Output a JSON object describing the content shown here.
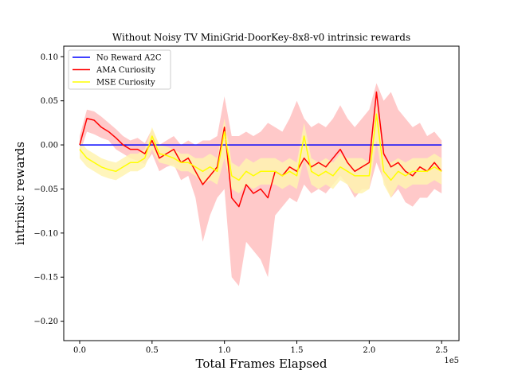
{
  "chart_data": {
    "type": "line",
    "title": "Without Noisy TV MiniGrid-DoorKey-8x8-v0 intrinsic rewards",
    "xlabel": "Total Frames Elapsed",
    "ylabel": "intrinsic rewards",
    "x_multiplier_label": "1e5",
    "xlim": [
      -11000,
      262000
    ],
    "ylim": [
      -0.222,
      0.112
    ],
    "x_ticks": [
      {
        "value": 0,
        "label": "0.0"
      },
      {
        "value": 50000,
        "label": "0.5"
      },
      {
        "value": 100000,
        "label": "1.0"
      },
      {
        "value": 150000,
        "label": "1.5"
      },
      {
        "value": 200000,
        "label": "2.0"
      },
      {
        "value": 250000,
        "label": "2.5"
      }
    ],
    "y_ticks": [
      {
        "value": 0.1,
        "label": "0.10"
      },
      {
        "value": 0.05,
        "label": "0.05"
      },
      {
        "value": 0.0,
        "label": "0.00"
      },
      {
        "value": -0.05,
        "label": "−0.05"
      },
      {
        "value": -0.1,
        "label": "−0.10"
      },
      {
        "value": -0.15,
        "label": "−0.15"
      },
      {
        "value": -0.2,
        "label": "−0.20"
      }
    ],
    "grid": false,
    "legend_position": "top-left",
    "series": [
      {
        "name": "No Reward A2C",
        "color": "#0000ff",
        "x": [
          0,
          250000
        ],
        "y": [
          0.0,
          0.0
        ]
      },
      {
        "name": "AMA Curiosity",
        "color": "#ff0000",
        "band_color": "#ffbfbf",
        "x": [
          0,
          5000,
          10000,
          15000,
          20000,
          25000,
          30000,
          35000,
          40000,
          45000,
          50000,
          55000,
          60000,
          65000,
          70000,
          75000,
          80000,
          85000,
          90000,
          95000,
          100000,
          105000,
          110000,
          115000,
          120000,
          125000,
          130000,
          135000,
          140000,
          145000,
          150000,
          155000,
          160000,
          165000,
          170000,
          175000,
          180000,
          185000,
          190000,
          195000,
          200000,
          205000,
          210000,
          215000,
          220000,
          225000,
          230000,
          235000,
          240000,
          245000,
          250000
        ],
        "y": [
          0.0,
          0.03,
          0.028,
          0.02,
          0.015,
          0.008,
          0.0,
          -0.005,
          -0.005,
          -0.01,
          0.005,
          -0.015,
          -0.01,
          -0.005,
          -0.02,
          -0.015,
          -0.03,
          -0.045,
          -0.035,
          -0.025,
          0.02,
          -0.06,
          -0.07,
          -0.045,
          -0.055,
          -0.05,
          -0.06,
          -0.03,
          -0.035,
          -0.025,
          -0.03,
          -0.015,
          -0.025,
          -0.02,
          -0.025,
          -0.015,
          -0.005,
          -0.02,
          -0.03,
          -0.025,
          -0.02,
          0.06,
          -0.01,
          -0.025,
          -0.02,
          -0.03,
          -0.035,
          -0.025,
          -0.03,
          -0.02,
          -0.03
        ],
        "lower": [
          -0.01,
          0.015,
          0.012,
          0.008,
          0.005,
          -0.005,
          -0.01,
          -0.015,
          -0.018,
          -0.022,
          -0.01,
          -0.03,
          -0.025,
          -0.022,
          -0.04,
          -0.035,
          -0.06,
          -0.11,
          -0.08,
          -0.06,
          -0.05,
          -0.15,
          -0.16,
          -0.11,
          -0.12,
          -0.13,
          -0.15,
          -0.08,
          -0.07,
          -0.06,
          -0.065,
          -0.045,
          -0.055,
          -0.05,
          -0.055,
          -0.045,
          -0.035,
          -0.045,
          -0.06,
          -0.05,
          -0.05,
          -0.02,
          -0.04,
          -0.06,
          -0.05,
          -0.065,
          -0.07,
          -0.06,
          -0.06,
          -0.05,
          -0.055
        ],
        "upper": [
          0.01,
          0.04,
          0.038,
          0.032,
          0.025,
          0.018,
          0.01,
          0.005,
          0.008,
          0.002,
          0.018,
          0.0,
          0.005,
          0.01,
          0.0,
          0.005,
          0.0,
          0.005,
          0.005,
          0.01,
          0.055,
          0.01,
          0.01,
          0.015,
          0.01,
          0.015,
          0.025,
          0.02,
          0.015,
          0.03,
          0.05,
          0.03,
          0.02,
          0.025,
          0.02,
          0.03,
          0.045,
          0.03,
          0.02,
          0.03,
          0.04,
          0.07,
          0.05,
          0.06,
          0.04,
          0.03,
          0.02,
          0.025,
          0.01,
          0.015,
          0.005
        ]
      },
      {
        "name": "MSE Curiosity",
        "color": "#ffff00",
        "band_color": "#fff3b0",
        "x": [
          0,
          5000,
          10000,
          15000,
          20000,
          25000,
          30000,
          35000,
          40000,
          45000,
          50000,
          55000,
          60000,
          65000,
          70000,
          75000,
          80000,
          85000,
          90000,
          95000,
          100000,
          105000,
          110000,
          115000,
          120000,
          125000,
          130000,
          135000,
          140000,
          145000,
          150000,
          155000,
          160000,
          165000,
          170000,
          175000,
          180000,
          185000,
          190000,
          195000,
          200000,
          205000,
          210000,
          215000,
          220000,
          225000,
          230000,
          235000,
          240000,
          245000,
          250000
        ],
        "y": [
          -0.005,
          -0.015,
          -0.02,
          -0.025,
          -0.028,
          -0.03,
          -0.025,
          -0.02,
          -0.02,
          -0.015,
          0.01,
          -0.01,
          -0.012,
          -0.015,
          -0.02,
          -0.02,
          -0.025,
          -0.03,
          -0.025,
          -0.03,
          0.015,
          -0.035,
          -0.04,
          -0.03,
          -0.035,
          -0.03,
          -0.03,
          -0.03,
          -0.035,
          -0.03,
          -0.035,
          0.01,
          -0.03,
          -0.035,
          -0.03,
          -0.035,
          -0.025,
          -0.03,
          -0.035,
          -0.035,
          -0.035,
          0.035,
          -0.03,
          -0.04,
          -0.03,
          -0.035,
          -0.03,
          -0.03,
          -0.03,
          -0.025,
          -0.03
        ],
        "lower": [
          -0.015,
          -0.025,
          -0.03,
          -0.035,
          -0.038,
          -0.04,
          -0.035,
          -0.03,
          -0.03,
          -0.025,
          -0.005,
          -0.02,
          -0.022,
          -0.025,
          -0.03,
          -0.03,
          -0.035,
          -0.045,
          -0.04,
          -0.045,
          -0.015,
          -0.05,
          -0.055,
          -0.045,
          -0.05,
          -0.045,
          -0.045,
          -0.045,
          -0.05,
          -0.045,
          -0.05,
          -0.015,
          -0.045,
          -0.05,
          -0.045,
          -0.05,
          -0.04,
          -0.045,
          -0.055,
          -0.055,
          -0.05,
          0.005,
          -0.045,
          -0.06,
          -0.045,
          -0.05,
          -0.045,
          -0.045,
          -0.045,
          -0.04,
          -0.045
        ],
        "upper": [
          0.005,
          -0.005,
          -0.01,
          -0.015,
          -0.018,
          -0.02,
          -0.015,
          -0.01,
          -0.01,
          -0.005,
          0.02,
          0.0,
          -0.002,
          -0.005,
          -0.01,
          -0.01,
          -0.015,
          -0.015,
          -0.01,
          -0.015,
          0.03,
          -0.02,
          -0.025,
          -0.015,
          -0.02,
          -0.015,
          -0.015,
          -0.015,
          -0.02,
          -0.015,
          -0.02,
          0.025,
          -0.015,
          -0.02,
          -0.015,
          -0.02,
          -0.01,
          -0.015,
          -0.015,
          -0.015,
          -0.02,
          0.045,
          -0.015,
          -0.02,
          -0.015,
          -0.02,
          -0.015,
          -0.015,
          -0.015,
          -0.01,
          -0.015
        ]
      }
    ]
  }
}
